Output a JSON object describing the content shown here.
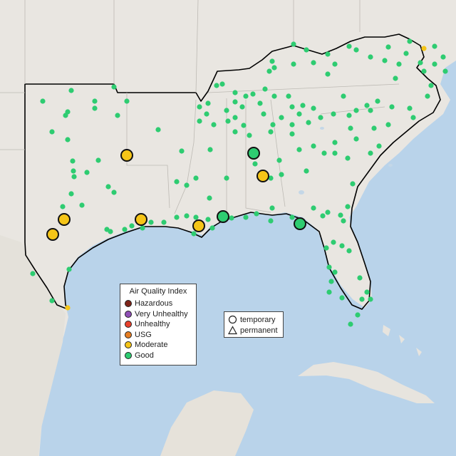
{
  "legend": {
    "title": "Air Quality Index",
    "categories": [
      {
        "label": "Hazardous",
        "color": "#7e2418"
      },
      {
        "label": "Very Unhealthy",
        "color": "#8f4fb5"
      },
      {
        "label": "Unhealthy",
        "color": "#e8412c"
      },
      {
        "label": "USG",
        "color": "#e67e22"
      },
      {
        "label": "Moderate",
        "color": "#f5c518"
      },
      {
        "label": "Good",
        "color": "#2ecc71"
      }
    ]
  },
  "shape_legend": {
    "items": [
      {
        "label": "temporary",
        "icon": "circle-icon"
      },
      {
        "label": "permanent",
        "icon": "triangle-icon"
      }
    ]
  },
  "colors": {
    "water": "#b9d3ea",
    "land": "#e9e6e1",
    "border": "#000000",
    "good": "#2ecc71",
    "moderate": "#f5c518"
  }
}
